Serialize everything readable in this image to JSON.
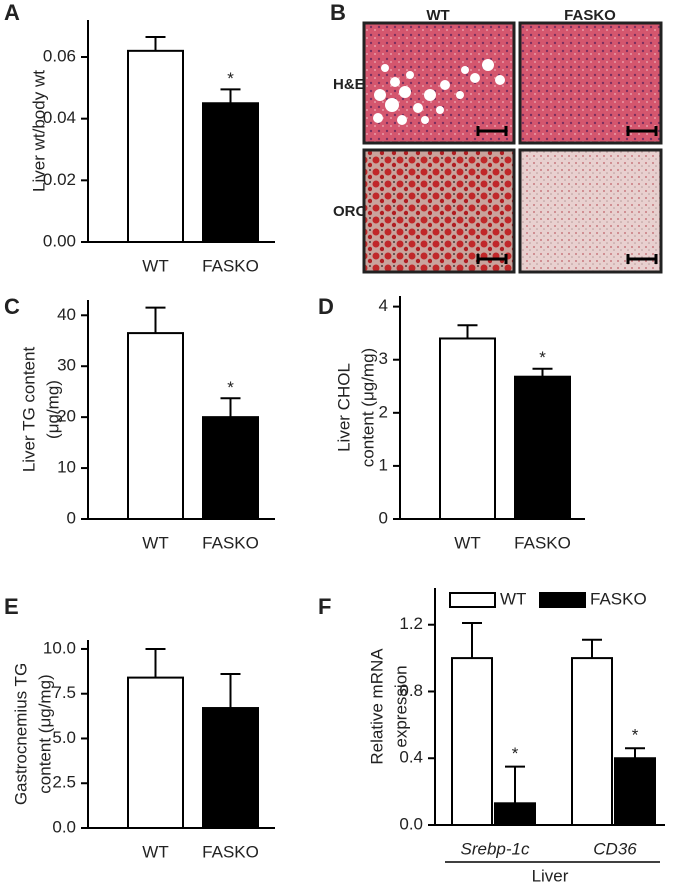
{
  "chart_data": [
    {
      "type": "bar",
      "panel": "A",
      "ylabel": [
        "Liver wt/body wt"
      ],
      "categories": [
        "WT",
        "FASKO"
      ],
      "values": [
        0.062,
        0.045
      ],
      "errors": [
        0.0045,
        0.0045
      ],
      "colors": [
        "#ffffff",
        "#000000"
      ],
      "marks": [
        null,
        "*"
      ],
      "ylim": [
        0,
        0.072
      ],
      "yticks": [
        {
          "value": 0,
          "label": "0.00"
        },
        {
          "value": 0.02,
          "label": "0.02"
        },
        {
          "value": 0.04,
          "label": "0.04"
        },
        {
          "value": 0.06,
          "label": "0.06"
        }
      ]
    },
    {
      "type": "bar",
      "panel": "C",
      "ylabel": [
        "Liver TG content",
        "(μg/mg)"
      ],
      "categories": [
        "WT",
        "FASKO"
      ],
      "values": [
        36.5,
        20
      ],
      "errors": [
        5,
        3.7
      ],
      "colors": [
        "#ffffff",
        "#000000"
      ],
      "marks": [
        null,
        "*"
      ],
      "ylim": [
        0,
        43
      ],
      "yticks": [
        0,
        10,
        20,
        30,
        40
      ]
    },
    {
      "type": "bar",
      "panel": "D",
      "ylabel": [
        "Liver CHOL",
        "content (μg/mg)"
      ],
      "categories": [
        "WT",
        "FASKO"
      ],
      "values": [
        3.4,
        2.68
      ],
      "errors": [
        0.25,
        0.15
      ],
      "colors": [
        "#ffffff",
        "#000000"
      ],
      "marks": [
        null,
        "*"
      ],
      "ylim": [
        0,
        4.2
      ],
      "yticks": [
        0,
        1,
        2,
        3,
        4
      ]
    },
    {
      "type": "bar",
      "panel": "E",
      "ylabel": [
        "Gastrocnemius TG",
        "content (μg/mg)"
      ],
      "categories": [
        "WT",
        "FASKO"
      ],
      "values": [
        8.4,
        6.7
      ],
      "errors": [
        1.6,
        1.9
      ],
      "colors": [
        "#ffffff",
        "#000000"
      ],
      "marks": [
        null,
        null
      ],
      "ylim": [
        0,
        10.5
      ],
      "yticks": [
        {
          "value": 0,
          "label": "0.0"
        },
        {
          "value": 2.5,
          "label": "2.5"
        },
        {
          "value": 5,
          "label": "5.0"
        },
        {
          "value": 7.5,
          "label": "7.5"
        },
        {
          "value": 10,
          "label": "10.0"
        }
      ]
    },
    {
      "type": "grouped-bar",
      "panel": "F",
      "ylabel": [
        "Relative mRNA",
        "expression"
      ],
      "xlabel": "Liver",
      "categories": [
        "Srebp-1c",
        "CD36"
      ],
      "series": [
        {
          "name": "WT",
          "color": "#ffffff",
          "values": [
            1.0,
            1.0
          ],
          "errors": [
            0.21,
            0.11
          ],
          "marks": [
            null,
            null
          ]
        },
        {
          "name": "FASKO",
          "color": "#000000",
          "values": [
            0.13,
            0.4
          ],
          "errors": [
            0.22,
            0.06
          ],
          "marks": [
            "*",
            "*"
          ]
        }
      ],
      "legend": "top",
      "ylim": [
        0,
        1.42
      ],
      "yticks": [
        {
          "value": 0,
          "label": "0.0"
        },
        {
          "value": 0.4,
          "label": "0.4"
        },
        {
          "value": 0.8,
          "label": "0.8"
        },
        {
          "value": 1.2,
          "label": "1.2"
        }
      ]
    }
  ],
  "panel_b": {
    "panel": "B",
    "columns": [
      "WT",
      "FASKO"
    ],
    "rows": [
      "H&E",
      "ORO"
    ]
  }
}
